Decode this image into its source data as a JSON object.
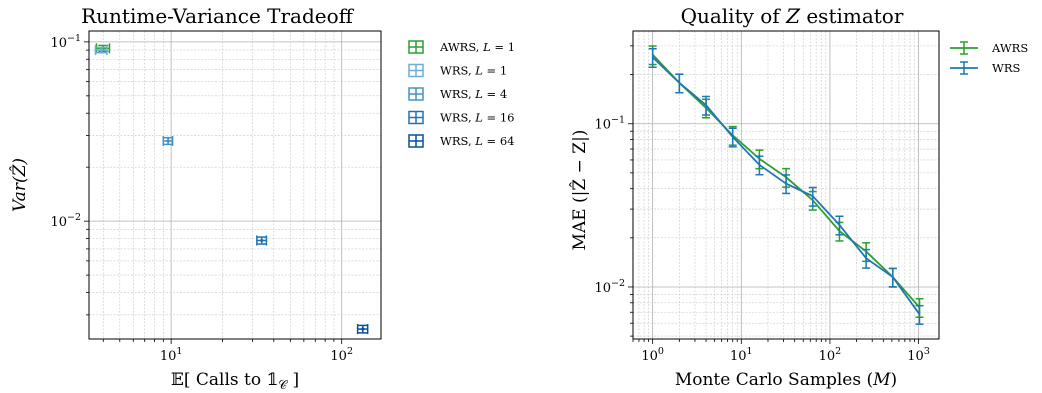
{
  "chart_data": [
    {
      "type": "scatter",
      "title": "Runtime-Variance Tradeoff",
      "xlabel": "𝔼[ Calls to 𝟙",
      "xlabel_sub": "𝒞",
      "xlabel_end": " ]",
      "ylabel": "Var(Ẑ)",
      "xscale": "log",
      "yscale": "log",
      "xlim": [
        3.3,
        170
      ],
      "ylim": [
        0.0022,
        0.115
      ],
      "x_ticks": [
        {
          "value": 10,
          "label": "10",
          "exp": "1"
        },
        {
          "value": 100,
          "label": "10",
          "exp": "2"
        }
      ],
      "y_ticks": [
        {
          "value": 0.01,
          "label": "10",
          "exp": "−2"
        },
        {
          "value": 0.1,
          "label": "10",
          "exp": "−1"
        }
      ],
      "grid": true,
      "legend_position": "outside-right",
      "series": [
        {
          "name": "AWRS, L = 1",
          "label_main": "AWRS, ",
          "label_var": "L",
          "label_rest": " = 1",
          "color": "#2ca02c",
          "points": [
            {
              "x": 4.0,
              "y": 0.092,
              "xerr": 0.35,
              "yerr": 0.0035
            }
          ]
        },
        {
          "name": "WRS, L = 1",
          "label_main": "WRS, ",
          "label_var": "L",
          "label_rest": " = 1",
          "color": "#6baed6",
          "points": [
            {
              "x": 3.9,
              "y": 0.09,
              "xerr": 0.3,
              "yerr": 0.003
            }
          ]
        },
        {
          "name": "WRS, L = 4",
          "label_main": "WRS, ",
          "label_var": "L",
          "label_rest": " = 4",
          "color": "#4292c6",
          "points": [
            {
              "x": 9.6,
              "y": 0.028,
              "xerr": 0.6,
              "yerr": 0.0012
            }
          ]
        },
        {
          "name": "WRS, L = 16",
          "label_main": "WRS, ",
          "label_var": "L",
          "label_rest": " = 16",
          "color": "#2171b5",
          "points": [
            {
              "x": 34,
              "y": 0.0078,
              "xerr": 2.2,
              "yerr": 0.00035
            }
          ]
        },
        {
          "name": "WRS, L = 64",
          "label_main": "WRS, ",
          "label_var": "L",
          "label_rest": " = 64",
          "color": "#08519c",
          "points": [
            {
              "x": 133,
              "y": 0.0025,
              "xerr": 9,
              "yerr": 0.00012
            }
          ]
        }
      ]
    },
    {
      "type": "line",
      "title_main": "Quality of ",
      "title_var": "Z",
      "title_rest": " estimator",
      "xlabel": "Monte Carlo Samples (",
      "xlabel_var": "M",
      "xlabel_end": ")",
      "ylabel": "MAE (|Ẑ − Z|)",
      "xscale": "log",
      "yscale": "log",
      "xlim": [
        0.6,
        1700
      ],
      "ylim": [
        0.0048,
        0.37
      ],
      "x_ticks": [
        {
          "value": 1,
          "label": "10",
          "exp": "0"
        },
        {
          "value": 10,
          "label": "10",
          "exp": "1"
        },
        {
          "value": 100,
          "label": "10",
          "exp": "2"
        },
        {
          "value": 1000,
          "label": "10",
          "exp": "3"
        }
      ],
      "y_ticks": [
        {
          "value": 0.01,
          "label": "10",
          "exp": "−2"
        },
        {
          "value": 0.1,
          "label": "10",
          "exp": "−1"
        }
      ],
      "grid": true,
      "legend_position": "top-right",
      "x": [
        1,
        2,
        4,
        8,
        16,
        32,
        64,
        128,
        256,
        512,
        1024
      ],
      "series": [
        {
          "name": "AWRS",
          "color": "#2ca02c",
          "values": [
            0.265,
            0.178,
            0.125,
            0.085,
            0.061,
            0.047,
            0.034,
            0.022,
            0.0165,
            0.0115,
            0.0075
          ],
          "err_frac": 0.13
        },
        {
          "name": "WRS",
          "color": "#1f77b4",
          "values": [
            0.255,
            0.178,
            0.13,
            0.083,
            0.056,
            0.043,
            0.036,
            0.024,
            0.015,
            0.0115,
            0.0068
          ],
          "err_frac": 0.13
        }
      ]
    }
  ]
}
